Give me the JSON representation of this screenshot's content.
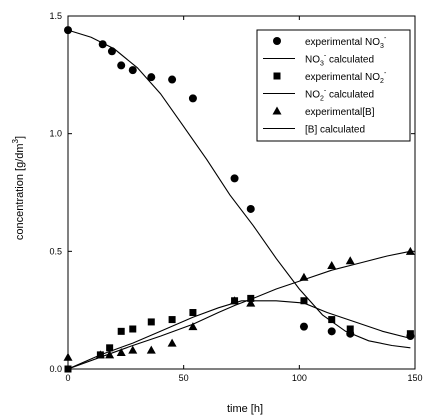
{
  "chart_data": {
    "type": "scatter",
    "xlabel": "time [h]",
    "ylabel": "concentration [g/dm",
    "ylabel_sup": "3",
    "ylabel_close": "]",
    "xlim": [
      0,
      150
    ],
    "ylim": [
      0,
      1.5
    ],
    "x_ticks": [
      0,
      50,
      100,
      150
    ],
    "x_tick_labels": [
      "0",
      "50",
      "100",
      "150"
    ],
    "y_ticks": [
      0,
      0.5,
      1.0,
      1.5
    ],
    "y_tick_labels": [
      "0.0",
      "0.5",
      "1.0",
      "1.5"
    ],
    "grid": false,
    "legend_position": "top-right",
    "legend": [
      {
        "kind": "marker",
        "marker": "circle",
        "label": "experimental NO",
        "sub": "3",
        "sup": "-"
      },
      {
        "kind": "line",
        "label": "NO",
        "sub": "3",
        "sup": "-",
        "tail": " calculated",
        "sup_before_sub": true
      },
      {
        "kind": "marker",
        "marker": "square",
        "label": "experimental NO",
        "sub": "2",
        "sup": "-"
      },
      {
        "kind": "line",
        "label": "NO",
        "sub": "2",
        "sup": "-",
        "tail": " calculated",
        "sup_before_sub": true
      },
      {
        "kind": "marker",
        "marker": "triangle",
        "label": "experimental[B]"
      },
      {
        "kind": "line",
        "label": "[B] calculated"
      }
    ],
    "series": [
      {
        "marker": "circle",
        "points": [
          [
            0,
            1.44
          ],
          [
            15,
            1.38
          ],
          [
            19,
            1.35
          ],
          [
            23,
            1.29
          ],
          [
            28,
            1.27
          ],
          [
            36,
            1.24
          ],
          [
            45,
            1.23
          ],
          [
            54,
            1.15
          ],
          [
            72,
            0.81
          ],
          [
            79,
            0.68
          ],
          [
            102,
            0.18
          ],
          [
            114,
            0.16
          ],
          [
            122,
            0.15
          ],
          [
            148,
            0.14
          ]
        ]
      },
      {
        "marker": "square",
        "points": [
          [
            0,
            0.0
          ],
          [
            14,
            0.06
          ],
          [
            18,
            0.09
          ],
          [
            23,
            0.16
          ],
          [
            28,
            0.17
          ],
          [
            36,
            0.2
          ],
          [
            45,
            0.21
          ],
          [
            54,
            0.24
          ],
          [
            72,
            0.29
          ],
          [
            79,
            0.3
          ],
          [
            102,
            0.29
          ],
          [
            114,
            0.21
          ],
          [
            122,
            0.17
          ],
          [
            148,
            0.15
          ]
        ]
      },
      {
        "marker": "triangle",
        "points": [
          [
            0,
            0.05
          ],
          [
            14,
            0.06
          ],
          [
            18,
            0.06
          ],
          [
            23,
            0.07
          ],
          [
            28,
            0.08
          ],
          [
            36,
            0.08
          ],
          [
            45,
            0.11
          ],
          [
            54,
            0.18
          ],
          [
            72,
            0.29
          ],
          [
            79,
            0.28
          ],
          [
            102,
            0.39
          ],
          [
            114,
            0.44
          ],
          [
            122,
            0.46
          ],
          [
            148,
            0.5
          ]
        ]
      },
      {
        "kind": "line",
        "points": [
          [
            0,
            1.44
          ],
          [
            10,
            1.41
          ],
          [
            20,
            1.36
          ],
          [
            30,
            1.28
          ],
          [
            40,
            1.17
          ],
          [
            50,
            1.03
          ],
          [
            60,
            0.89
          ],
          [
            70,
            0.74
          ],
          [
            80,
            0.61
          ],
          [
            90,
            0.47
          ],
          [
            100,
            0.34
          ],
          [
            110,
            0.23
          ],
          [
            120,
            0.16
          ],
          [
            130,
            0.12
          ],
          [
            140,
            0.1
          ],
          [
            148,
            0.09
          ]
        ]
      },
      {
        "kind": "line",
        "points": [
          [
            0,
            0.0
          ],
          [
            14,
            0.06
          ],
          [
            28,
            0.11
          ],
          [
            40,
            0.16
          ],
          [
            54,
            0.22
          ],
          [
            65,
            0.26
          ],
          [
            75,
            0.29
          ],
          [
            90,
            0.29
          ],
          [
            102,
            0.28
          ],
          [
            112,
            0.24
          ],
          [
            124,
            0.2
          ],
          [
            136,
            0.16
          ],
          [
            148,
            0.13
          ]
        ]
      },
      {
        "kind": "line",
        "points": [
          [
            0,
            0.0
          ],
          [
            14,
            0.05
          ],
          [
            28,
            0.1
          ],
          [
            40,
            0.14
          ],
          [
            54,
            0.19
          ],
          [
            65,
            0.24
          ],
          [
            72,
            0.27
          ],
          [
            80,
            0.3
          ],
          [
            90,
            0.34
          ],
          [
            102,
            0.38
          ],
          [
            114,
            0.42
          ],
          [
            126,
            0.45
          ],
          [
            138,
            0.48
          ],
          [
            148,
            0.5
          ]
        ]
      }
    ]
  }
}
